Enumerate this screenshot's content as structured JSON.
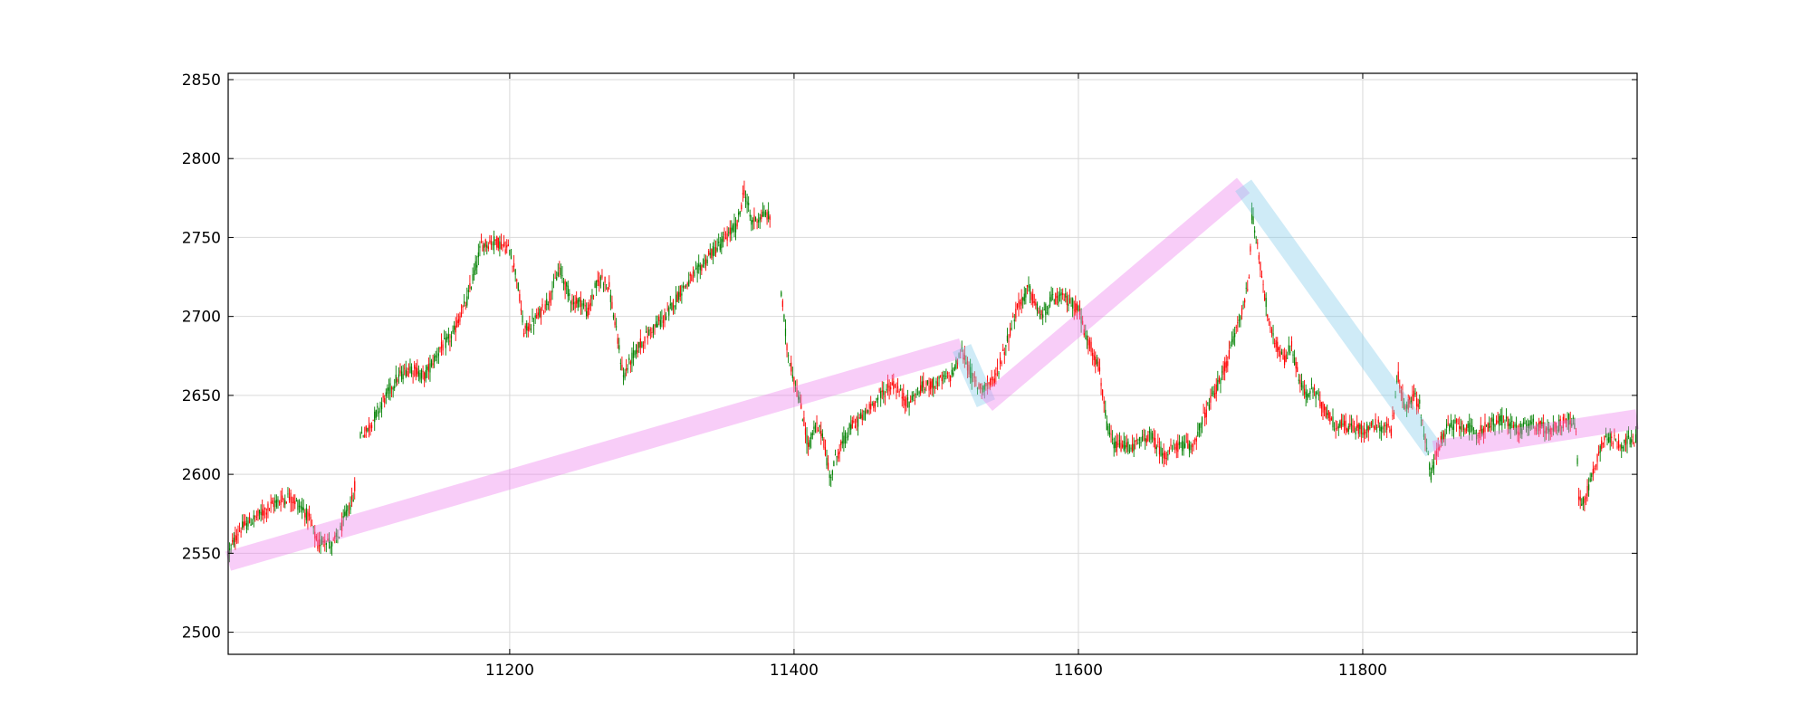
{
  "chart_data": {
    "type": "candlestick",
    "title": "",
    "xlabel": "",
    "ylabel": "",
    "xlim": [
      11002,
      11993
    ],
    "ylim": [
      2486,
      2854
    ],
    "grid": true,
    "x_ticks": [
      "11200",
      "11400",
      "11600",
      "11800"
    ],
    "x_tick_values": [
      11200,
      11400,
      11600,
      11800
    ],
    "y_ticks": [
      "2500",
      "2550",
      "2600",
      "2650",
      "2700",
      "2750",
      "2800",
      "2850"
    ],
    "y_tick_values": [
      2500,
      2550,
      2600,
      2650,
      2700,
      2750,
      2800,
      2850
    ],
    "colors": {
      "up": "#ff0000",
      "down": "#008000",
      "trend_up": "#ee82ee",
      "trend_down": "#87ceeb",
      "grid": "#d9d9d9"
    },
    "price_path": [
      [
        11002,
        2550
      ],
      [
        11010,
        2565
      ],
      [
        11025,
        2575
      ],
      [
        11035,
        2582
      ],
      [
        11045,
        2586
      ],
      [
        11055,
        2578
      ],
      [
        11060,
        2570
      ],
      [
        11065,
        2555
      ],
      [
        11070,
        2560
      ],
      [
        11075,
        2555
      ],
      [
        11080,
        2562
      ],
      [
        11085,
        2575
      ],
      [
        11090,
        2585
      ],
      [
        11095,
        2625
      ],
      [
        11100,
        2628
      ],
      [
        11110,
        2645
      ],
      [
        11120,
        2660
      ],
      [
        11130,
        2668
      ],
      [
        11140,
        2662
      ],
      [
        11150,
        2678
      ],
      [
        11160,
        2688
      ],
      [
        11165,
        2700
      ],
      [
        11170,
        2710
      ],
      [
        11175,
        2728
      ],
      [
        11180,
        2745
      ],
      [
        11190,
        2748
      ],
      [
        11200,
        2742
      ],
      [
        11205,
        2725
      ],
      [
        11210,
        2690
      ],
      [
        11220,
        2700
      ],
      [
        11228,
        2712
      ],
      [
        11235,
        2730
      ],
      [
        11240,
        2718
      ],
      [
        11245,
        2708
      ],
      [
        11250,
        2710
      ],
      [
        11255,
        2702
      ],
      [
        11260,
        2718
      ],
      [
        11265,
        2725
      ],
      [
        11270,
        2718
      ],
      [
        11275,
        2690
      ],
      [
        11280,
        2662
      ],
      [
        11285,
        2672
      ],
      [
        11290,
        2680
      ],
      [
        11300,
        2692
      ],
      [
        11310,
        2700
      ],
      [
        11320,
        2716
      ],
      [
        11330,
        2726
      ],
      [
        11340,
        2738
      ],
      [
        11350,
        2748
      ],
      [
        11360,
        2758
      ],
      [
        11365,
        2780
      ],
      [
        11370,
        2760
      ],
      [
        11380,
        2765
      ],
      [
        11385,
        2760
      ],
      [
        11390,
        2725
      ],
      [
        11395,
        2680
      ],
      [
        11400,
        2660
      ],
      [
        11405,
        2642
      ],
      [
        11410,
        2618
      ],
      [
        11415,
        2630
      ],
      [
        11420,
        2626
      ],
      [
        11425,
        2598
      ],
      [
        11430,
        2612
      ],
      [
        11440,
        2630
      ],
      [
        11450,
        2638
      ],
      [
        11460,
        2650
      ],
      [
        11470,
        2657
      ],
      [
        11480,
        2645
      ],
      [
        11490,
        2655
      ],
      [
        11500,
        2658
      ],
      [
        11510,
        2662
      ],
      [
        11518,
        2678
      ],
      [
        11525,
        2662
      ],
      [
        11530,
        2655
      ],
      [
        11540,
        2658
      ],
      [
        11545,
        2670
      ],
      [
        11555,
        2700
      ],
      [
        11560,
        2710
      ],
      [
        11565,
        2718
      ],
      [
        11570,
        2706
      ],
      [
        11575,
        2700
      ],
      [
        11580,
        2710
      ],
      [
        11590,
        2712
      ],
      [
        11600,
        2705
      ],
      [
        11605,
        2688
      ],
      [
        11610,
        2678
      ],
      [
        11615,
        2665
      ],
      [
        11620,
        2630
      ],
      [
        11625,
        2618
      ],
      [
        11640,
        2618
      ],
      [
        11650,
        2625
      ],
      [
        11660,
        2612
      ],
      [
        11670,
        2618
      ],
      [
        11680,
        2618
      ],
      [
        11690,
        2640
      ],
      [
        11700,
        2660
      ],
      [
        11705,
        2672
      ],
      [
        11710,
        2690
      ],
      [
        11715,
        2702
      ],
      [
        11720,
        2725
      ],
      [
        11722,
        2765
      ],
      [
        11726,
        2745
      ],
      [
        11730,
        2720
      ],
      [
        11735,
        2690
      ],
      [
        11740,
        2680
      ],
      [
        11745,
        2672
      ],
      [
        11750,
        2682
      ],
      [
        11755,
        2660
      ],
      [
        11760,
        2650
      ],
      [
        11765,
        2655
      ],
      [
        11770,
        2645
      ],
      [
        11780,
        2632
      ],
      [
        11790,
        2630
      ],
      [
        11800,
        2628
      ],
      [
        11810,
        2632
      ],
      [
        11820,
        2628
      ],
      [
        11825,
        2662
      ],
      [
        11830,
        2640
      ],
      [
        11835,
        2650
      ],
      [
        11840,
        2645
      ],
      [
        11845,
        2615
      ],
      [
        11848,
        2600
      ],
      [
        11852,
        2615
      ],
      [
        11860,
        2630
      ],
      [
        11870,
        2632
      ],
      [
        11880,
        2625
      ],
      [
        11890,
        2632
      ],
      [
        11900,
        2635
      ],
      [
        11910,
        2628
      ],
      [
        11920,
        2632
      ],
      [
        11930,
        2628
      ],
      [
        11940,
        2632
      ],
      [
        11945,
        2635
      ],
      [
        11950,
        2630
      ],
      [
        11952,
        2585
      ],
      [
        11955,
        2582
      ],
      [
        11960,
        2595
      ],
      [
        11965,
        2610
      ],
      [
        11970,
        2625
      ],
      [
        11980,
        2620
      ],
      [
        11993,
        2622
      ]
    ],
    "series": [
      {
        "name": "",
        "kind": "trend",
        "direction": "up",
        "x": [
          11002,
          11518
        ],
        "y": [
          2545,
          2680
        ]
      },
      {
        "name": "",
        "kind": "trend",
        "direction": "down",
        "x": [
          11518,
          11535
        ],
        "y": [
          2680,
          2645
        ]
      },
      {
        "name": "",
        "kind": "trend",
        "direction": "up",
        "x": [
          11535,
          11716
        ],
        "y": [
          2645,
          2783
        ]
      },
      {
        "name": "",
        "kind": "trend",
        "direction": "down",
        "x": [
          11716,
          11850
        ],
        "y": [
          2783,
          2615
        ]
      },
      {
        "name": "",
        "kind": "trend",
        "direction": "up",
        "x": [
          11850,
          11993
        ],
        "y": [
          2615,
          2635
        ]
      }
    ]
  }
}
